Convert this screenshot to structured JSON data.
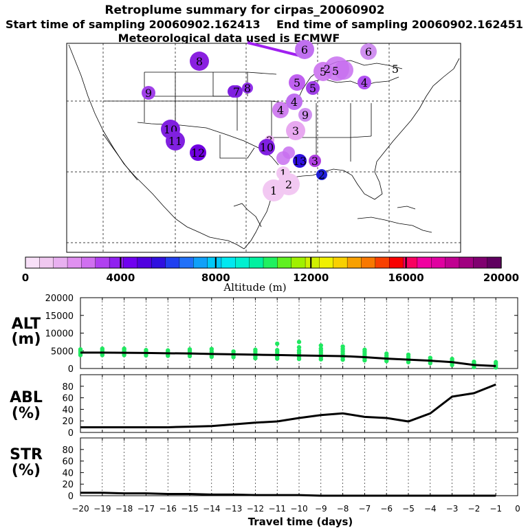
{
  "header": {
    "title": "Retroplume summary for cirpas_20060902",
    "start_line": "Start time of sampling 20060902.162413",
    "end_line": "End time of sampling 20060902.162451",
    "met_line": "Meteorological data used is ECMWF"
  },
  "chart_data": [
    {
      "type": "map",
      "name": "retroplume-map",
      "description_region": "North America (continental US, Mexico, Gulf of Mexico)",
      "labels": [
        {
          "day": "1",
          "color": "#f2c8f2"
        },
        {
          "day": "1",
          "color": "#f2c8f2"
        },
        {
          "day": "2",
          "color": "#f2c8f2"
        },
        {
          "day": "3",
          "color": "#e8a8f0"
        },
        {
          "day": "3",
          "color": "#e8a8f0"
        },
        {
          "day": "3",
          "color": "#b040e0"
        },
        {
          "day": "4",
          "color": "#d080f0"
        },
        {
          "day": "4",
          "color": "#c070f0"
        },
        {
          "day": "4",
          "color": "#b050f0"
        },
        {
          "day": "5",
          "color": "#c060f0"
        },
        {
          "day": "5",
          "color": "#d080f0"
        },
        {
          "day": "5",
          "color": "#a040e8"
        },
        {
          "day": "6",
          "color": "#c070f0"
        },
        {
          "day": "6",
          "color": "#d090f0"
        },
        {
          "day": "6",
          "color": "#8020e0"
        },
        {
          "day": "7",
          "color": "#8020e0"
        },
        {
          "day": "8",
          "color": "#8a20e0"
        },
        {
          "day": "8",
          "color": "#9030e8"
        },
        {
          "day": "9",
          "color": "#a040e8"
        },
        {
          "day": "9",
          "color": "#d090f0"
        },
        {
          "day": "10",
          "color": "#8020e0"
        },
        {
          "day": "10",
          "color": "#8020e0"
        },
        {
          "day": "11",
          "color": "#8020e0"
        },
        {
          "day": "12",
          "color": "#7000e0"
        },
        {
          "day": "13",
          "color": "#3010e0"
        },
        {
          "day": "2",
          "color": "#2020d8"
        }
      ]
    },
    {
      "type": "colorbar",
      "name": "altitude-colorbar",
      "title": "Altitude (m)",
      "range": [
        0,
        20000
      ],
      "tick_labels": [
        "0",
        "4000",
        "8000",
        "12000",
        "16000",
        "20000"
      ],
      "colors": [
        "#f8e0f8",
        "#f0c8f0",
        "#e8b0f0",
        "#e090f0",
        "#d070f0",
        "#b040f0",
        "#9020f0",
        "#7000f0",
        "#5000e0",
        "#3010e0",
        "#2040f0",
        "#2070f8",
        "#10a0f8",
        "#00c8f8",
        "#00e8f0",
        "#00f0d0",
        "#00f0a0",
        "#20f060",
        "#60f020",
        "#a0f000",
        "#d0f000",
        "#f0f000",
        "#f8d000",
        "#f8a000",
        "#f87800",
        "#f84000",
        "#f80000",
        "#f80060",
        "#f000a0",
        "#e000a0",
        "#c00090",
        "#a00080",
        "#800070",
        "#600060"
      ]
    },
    {
      "type": "scatter+line",
      "name": "ALT",
      "ylabel": "ALT (m)",
      "ylim": [
        0,
        20000
      ],
      "yticks": [
        0,
        5000,
        10000,
        15000,
        20000
      ],
      "xlim": [
        -20,
        0
      ],
      "x": [
        -20,
        -19,
        -18,
        -17,
        -16,
        -15,
        -14,
        -13,
        -12,
        -11,
        -10,
        -9,
        -8,
        -7,
        -6,
        -5,
        -4,
        -3,
        -2,
        -1
      ],
      "mean_line": [
        4500,
        4500,
        4450,
        4400,
        4300,
        4250,
        4100,
        4000,
        3900,
        3800,
        3700,
        3600,
        3500,
        3200,
        2800,
        2500,
        2200,
        1800,
        1000,
        700
      ],
      "scatter": [
        {
          "x": -20,
          "ys": [
            3800,
            4200,
            4600,
            5000,
            5400
          ]
        },
        {
          "x": -19,
          "ys": [
            3800,
            4200,
            4700,
            5200,
            5600
          ]
        },
        {
          "x": -18,
          "ys": [
            3800,
            4300,
            4800,
            5300,
            5600
          ]
        },
        {
          "x": -17,
          "ys": [
            3700,
            4200,
            4700,
            5200
          ]
        },
        {
          "x": -16,
          "ys": [
            3600,
            4100,
            4600,
            5100
          ]
        },
        {
          "x": -15,
          "ys": [
            3500,
            4000,
            4500,
            5000,
            5400
          ]
        },
        {
          "x": -14,
          "ys": [
            3300,
            3800,
            4300,
            4800,
            5500
          ]
        },
        {
          "x": -13,
          "ys": [
            3200,
            3700,
            4200,
            4800
          ]
        },
        {
          "x": -12,
          "ys": [
            2900,
            3500,
            4100,
            4700,
            5300
          ]
        },
        {
          "x": -11,
          "ys": [
            2800,
            3400,
            4000,
            4600,
            5200,
            7000
          ]
        },
        {
          "x": -10,
          "ys": [
            2700,
            3300,
            3900,
            4500,
            5100,
            6000,
            7500
          ]
        },
        {
          "x": -9,
          "ys": [
            2600,
            3200,
            3800,
            4400,
            5000,
            5600,
            6500
          ]
        },
        {
          "x": -8,
          "ys": [
            2500,
            3100,
            3700,
            4300,
            4900,
            5500,
            6200
          ]
        },
        {
          "x": -7,
          "ys": [
            2300,
            2900,
            3500,
            4100,
            4700,
            5300
          ]
        },
        {
          "x": -6,
          "ys": [
            2100,
            2600,
            3100,
            3600,
            4200
          ]
        },
        {
          "x": -5,
          "ys": [
            1800,
            2300,
            2800,
            3300,
            3900
          ]
        },
        {
          "x": -4,
          "ys": [
            1500,
            2000,
            2500,
            3000
          ]
        },
        {
          "x": -3,
          "ys": [
            1000,
            1600,
            2200,
            2700
          ]
        },
        {
          "x": -2,
          "ys": [
            400,
            900,
            1400,
            1900
          ]
        },
        {
          "x": -1,
          "ys": [
            300,
            800,
            1300,
            1800
          ]
        }
      ],
      "scatter_color": "#20e860"
    },
    {
      "type": "line",
      "name": "ABL",
      "ylabel": "ABL (%)",
      "ylim": [
        0,
        100
      ],
      "yticks": [
        0,
        20,
        40,
        60,
        80
      ],
      "xlim": [
        -20,
        0
      ],
      "x": [
        -20,
        -19,
        -18,
        -17,
        -16,
        -15,
        -14,
        -13,
        -12,
        -11,
        -10,
        -9,
        -8,
        -7,
        -6,
        -5,
        -4,
        -3,
        -2,
        -1
      ],
      "values": [
        9,
        9,
        9,
        9,
        9,
        10,
        11,
        14,
        17,
        19,
        25,
        30,
        33,
        27,
        25,
        19,
        33,
        62,
        68,
        83
      ]
    },
    {
      "type": "line",
      "name": "STR",
      "ylabel": "STR (%)",
      "ylim": [
        0,
        100
      ],
      "yticks": [
        0,
        20,
        40,
        60,
        80
      ],
      "xlim": [
        -20,
        0
      ],
      "x": [
        -20,
        -19,
        -18,
        -17,
        -16,
        -15,
        -14,
        -13,
        -12,
        -11,
        -10,
        -9,
        -8,
        -7,
        -6,
        -5,
        -4,
        -3,
        -2,
        -1
      ],
      "values": [
        5,
        5,
        4,
        4,
        3,
        3,
        2,
        2,
        1,
        1,
        1,
        0,
        0,
        0,
        0,
        0,
        0,
        0,
        0,
        0
      ],
      "xticks": [
        -20,
        -19,
        -18,
        -17,
        -16,
        -15,
        -14,
        -13,
        -12,
        -11,
        -10,
        -9,
        -8,
        -7,
        -6,
        -5,
        -4,
        -3,
        -2,
        -1,
        0
      ],
      "xtick_labels": [
        "−20",
        "−19",
        "−18",
        "−17",
        "−16",
        "−15",
        "−14",
        "−13",
        "−12",
        "−11",
        "−10",
        "−9",
        "−8",
        "−7",
        "−6",
        "−5",
        "−4",
        "−3",
        "−2",
        "−1",
        "0"
      ],
      "xlabel": "Travel time (days)"
    }
  ],
  "panels": {
    "alt_label_top": "ALT",
    "alt_label_bottom": "(m)",
    "abl_label_top": "ABL",
    "abl_label_bottom": "(%)",
    "str_label_top": "STR",
    "str_label_bottom": "(%)",
    "alt_ytick_labels": [
      "0",
      "5000",
      "10000",
      "15000",
      "20000"
    ],
    "pct_ytick_labels": [
      "0",
      "20",
      "40",
      "60",
      "80"
    ]
  }
}
